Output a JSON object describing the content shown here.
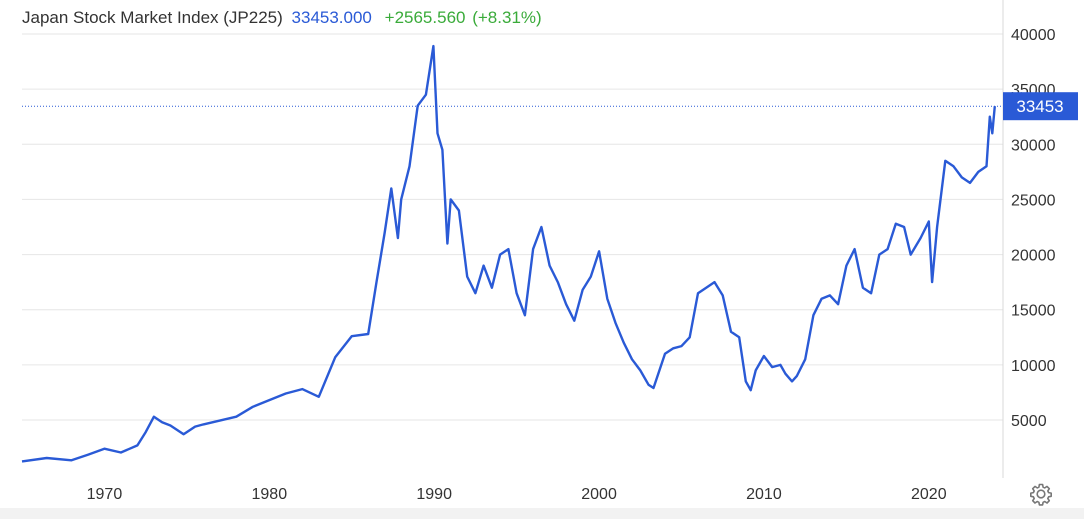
{
  "header": {
    "name": "Japan Stock Market Index (JP225)",
    "last": "33453.000",
    "change": "+2565.560",
    "change_pct": "(+8.31%)"
  },
  "last_label": "33453",
  "colors": {
    "line": "#2a5ad6",
    "grid": "#e6e6e6",
    "up": "#3aab3a",
    "axis_text": "#333333",
    "last_badge": "#2a5ad6"
  },
  "chart_data": {
    "type": "line",
    "title": "Japan Stock Market Index (JP225)",
    "xlabel": "",
    "ylabel": "",
    "xlim": [
      1965,
      2024.5
    ],
    "ylim": [
      0,
      42000
    ],
    "x_ticks": [
      1970,
      1980,
      1990,
      2000,
      2010,
      2020
    ],
    "y_ticks": [
      5000,
      10000,
      15000,
      20000,
      25000,
      30000,
      35000,
      40000
    ],
    "grid": "horizontal",
    "y_axis_position": "right",
    "last_value": 33453,
    "series": [
      {
        "x": [
          1965.0,
          1966.5,
          1968.0,
          1969.0,
          1970.0,
          1971.0,
          1972.0,
          1972.5,
          1973.0,
          1973.5,
          1974.0,
          1974.8,
          1975.5,
          1976.0,
          1977.0,
          1978.0,
          1979.0,
          1980.0,
          1981.0,
          1982.0,
          1983.0,
          1984.0,
          1985.0,
          1986.0,
          1986.5,
          1987.0,
          1987.4,
          1987.8,
          1988.0,
          1988.5,
          1989.0,
          1989.5,
          1989.95,
          1990.2,
          1990.5,
          1990.8,
          1991.0,
          1991.5,
          1992.0,
          1992.5,
          1993.0,
          1993.5,
          1994.0,
          1994.5,
          1995.0,
          1995.5,
          1996.0,
          1996.5,
          1997.0,
          1997.5,
          1998.0,
          1998.5,
          1999.0,
          1999.5,
          2000.0,
          2000.5,
          2001.0,
          2001.5,
          2002.0,
          2002.5,
          2003.0,
          2003.3,
          2004.0,
          2004.5,
          2005.0,
          2005.5,
          2006.0,
          2006.5,
          2007.0,
          2007.5,
          2008.0,
          2008.5,
          2008.9,
          2009.2,
          2009.5,
          2010.0,
          2010.5,
          2011.0,
          2011.3,
          2011.7,
          2012.0,
          2012.5,
          2013.0,
          2013.5,
          2014.0,
          2014.5,
          2015.0,
          2015.5,
          2016.0,
          2016.5,
          2017.0,
          2017.5,
          2018.0,
          2018.5,
          2018.9,
          2019.5,
          2020.0,
          2020.2,
          2020.5,
          2021.0,
          2021.5,
          2022.0,
          2022.5,
          2023.0,
          2023.5,
          2023.7,
          2023.85,
          2024.0
        ],
        "y": [
          1250,
          1550,
          1350,
          1850,
          2400,
          2050,
          2700,
          3900,
          5300,
          4800,
          4500,
          3700,
          4400,
          4600,
          4950,
          5300,
          6200,
          6800,
          7400,
          7800,
          7100,
          10700,
          12600,
          12800,
          17500,
          22000,
          26000,
          21500,
          25000,
          28000,
          33500,
          34500,
          38900,
          31000,
          29500,
          21000,
          25000,
          24000,
          18000,
          16500,
          19000,
          17000,
          20000,
          20500,
          16500,
          14500,
          20500,
          22500,
          19000,
          17500,
          15500,
          14000,
          16800,
          18000,
          20300,
          16000,
          13800,
          12000,
          10500,
          9500,
          8200,
          7900,
          11000,
          11500,
          11700,
          12500,
          16500,
          17000,
          17500,
          16300,
          13000,
          12500,
          8500,
          7700,
          9500,
          10800,
          9800,
          10000,
          9200,
          8500,
          9000,
          10500,
          14500,
          16000,
          16300,
          15500,
          19000,
          20500,
          17000,
          16500,
          20000,
          20500,
          22800,
          22500,
          20000,
          21500,
          23000,
          17500,
          22500,
          28500,
          28000,
          27000,
          26500,
          27500,
          28000,
          32500,
          31000,
          33453
        ]
      }
    ]
  }
}
